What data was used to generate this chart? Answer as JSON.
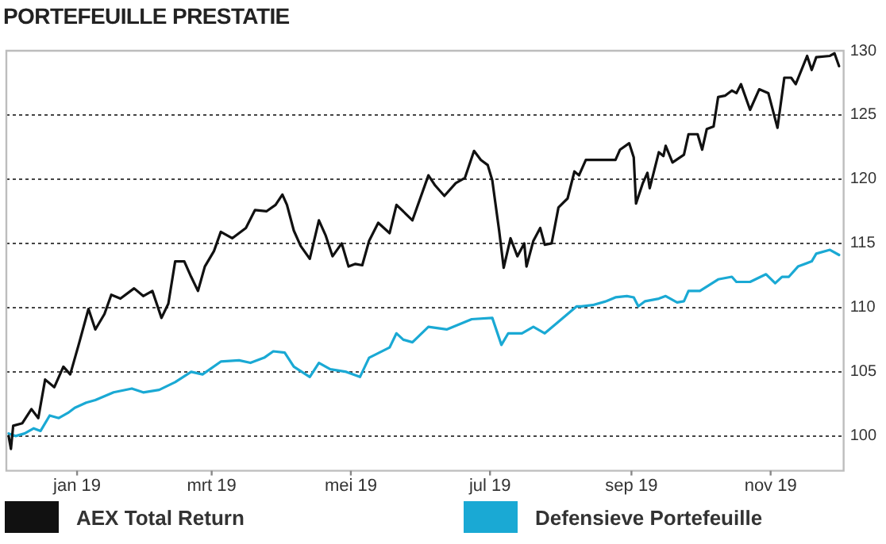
{
  "chart_data": {
    "type": "line",
    "title": "PORTEFEUILLE PRESTATIE",
    "xlim": [
      "2018-12-01",
      "2019-12-03"
    ],
    "xticks": [
      {
        "value": "2019-01-01",
        "label": "jan 19"
      },
      {
        "value": "2019-03-01",
        "label": "mrt 19"
      },
      {
        "value": "2019-05-01",
        "label": "mei 19"
      },
      {
        "value": "2019-07-01",
        "label": "jul 19"
      },
      {
        "value": "2019-09-01",
        "label": "sep 19"
      },
      {
        "value": "2019-11-01",
        "label": "nov 19"
      }
    ],
    "ylim": [
      97.3,
      130
    ],
    "yticks": [
      100,
      105,
      110,
      115,
      120,
      125,
      130
    ],
    "grid": "y",
    "legend": "bottom",
    "marker": "none",
    "line_style": "solid",
    "series": [
      {
        "name": "AEX Total Return",
        "color": "#111111",
        "x": [
          "2018-12-02",
          "2018-12-03",
          "2018-12-04",
          "2018-12-08",
          "2018-12-12",
          "2018-12-15",
          "2018-12-18",
          "2018-12-22",
          "2018-12-26",
          "2018-12-29",
          "2019-01-02",
          "2019-01-06",
          "2019-01-09",
          "2019-01-13",
          "2019-01-16",
          "2019-01-20",
          "2019-01-26",
          "2019-01-30",
          "2019-02-03",
          "2019-02-07",
          "2019-02-10",
          "2019-02-13",
          "2019-02-17",
          "2019-02-20",
          "2019-02-23",
          "2019-02-26",
          "2019-03-02",
          "2019-03-05",
          "2019-03-10",
          "2019-03-16",
          "2019-03-20",
          "2019-03-25",
          "2019-03-29",
          "2019-04-01",
          "2019-04-03",
          "2019-04-06",
          "2019-04-09",
          "2019-04-13",
          "2019-04-17",
          "2019-04-20",
          "2019-04-23",
          "2019-04-27",
          "2019-04-30",
          "2019-05-03",
          "2019-05-06",
          "2019-05-09",
          "2019-05-13",
          "2019-05-18",
          "2019-05-21",
          "2019-05-28",
          "2019-06-04",
          "2019-06-07",
          "2019-06-11",
          "2019-06-16",
          "2019-06-20",
          "2019-06-24",
          "2019-06-27",
          "2019-06-30",
          "2019-07-02",
          "2019-07-05",
          "2019-07-07",
          "2019-07-10",
          "2019-07-13",
          "2019-07-16",
          "2019-07-17",
          "2019-07-20",
          "2019-07-23",
          "2019-07-25",
          "2019-07-28",
          "2019-07-31",
          "2019-08-04",
          "2019-08-07",
          "2019-08-09",
          "2019-08-12",
          "2019-08-22",
          "2019-08-25",
          "2019-08-27",
          "2019-08-31",
          "2019-09-02",
          "2019-09-03",
          "2019-09-06",
          "2019-09-08",
          "2019-09-09",
          "2019-09-13",
          "2019-09-15",
          "2019-09-16",
          "2019-09-19",
          "2019-09-24",
          "2019-09-26",
          "2019-09-30",
          "2019-10-02",
          "2019-10-04",
          "2019-10-07",
          "2019-10-09",
          "2019-10-12",
          "2019-10-15",
          "2019-10-17",
          "2019-10-19",
          "2019-10-23",
          "2019-10-27",
          "2019-10-31",
          "2019-11-04",
          "2019-11-07",
          "2019-11-10",
          "2019-11-12",
          "2019-11-17",
          "2019-11-19",
          "2019-11-21",
          "2019-11-27",
          "2019-11-29",
          "2019-12-01"
        ],
        "values": [
          100,
          99.0,
          100.8,
          101.0,
          102.1,
          101.4,
          104.4,
          103.8,
          105.4,
          104.8,
          107.3,
          109.9,
          108.3,
          109.5,
          111.0,
          110.7,
          111.5,
          110.9,
          111.3,
          109.2,
          110.3,
          113.6,
          113.6,
          112.4,
          111.3,
          113.2,
          114.4,
          115.9,
          115.4,
          116.2,
          117.6,
          117.5,
          118.0,
          118.8,
          118.0,
          116.0,
          114.8,
          113.8,
          116.8,
          115.6,
          114.0,
          115.0,
          113.2,
          113.4,
          113.3,
          115.2,
          116.6,
          115.8,
          118.0,
          116.8,
          120.3,
          119.5,
          118.7,
          119.7,
          120.1,
          122.2,
          121.5,
          121.1,
          119.9,
          116.0,
          113.1,
          115.4,
          114.0,
          115.0,
          113.2,
          115.2,
          116.2,
          114.9,
          115.0,
          117.8,
          118.5,
          120.6,
          120.3,
          121.5,
          121.5,
          121.5,
          122.3,
          122.8,
          121.7,
          118.1,
          119.7,
          120.5,
          119.3,
          122.1,
          121.8,
          122.6,
          121.3,
          121.9,
          123.5,
          123.5,
          122.3,
          123.9,
          124.1,
          126.4,
          126.5,
          126.9,
          126.7,
          127.4,
          125.4,
          127.0,
          126.7,
          124.0,
          127.9,
          127.9,
          127.4,
          129.6,
          128.5,
          129.5,
          129.6,
          129.8,
          128.8
        ]
      },
      {
        "name": "Defensieve Portefeuille",
        "color": "#1aa9d4",
        "x": [
          "2018-12-02",
          "2018-12-05",
          "2018-12-09",
          "2018-12-13",
          "2018-12-16",
          "2018-12-20",
          "2018-12-24",
          "2018-12-28",
          "2018-12-31",
          "2019-01-05",
          "2019-01-09",
          "2019-01-17",
          "2019-01-25",
          "2019-01-30",
          "2019-02-06",
          "2019-02-13",
          "2019-02-20",
          "2019-02-25",
          "2019-03-05",
          "2019-03-13",
          "2019-03-18",
          "2019-03-24",
          "2019-03-28",
          "2019-04-02",
          "2019-04-06",
          "2019-04-13",
          "2019-04-17",
          "2019-04-22",
          "2019-04-29",
          "2019-05-05",
          "2019-05-09",
          "2019-05-18",
          "2019-05-21",
          "2019-05-24",
          "2019-05-28",
          "2019-06-04",
          "2019-06-12",
          "2019-06-23",
          "2019-07-02",
          "2019-07-06",
          "2019-07-09",
          "2019-07-15",
          "2019-07-20",
          "2019-07-25",
          "2019-07-31",
          "2019-08-08",
          "2019-08-10",
          "2019-08-15",
          "2019-08-21",
          "2019-08-25",
          "2019-08-30",
          "2019-09-02",
          "2019-09-04",
          "2019-09-07",
          "2019-09-13",
          "2019-09-16",
          "2019-09-21",
          "2019-09-24",
          "2019-09-26",
          "2019-10-01",
          "2019-10-09",
          "2019-10-15",
          "2019-10-17",
          "2019-10-23",
          "2019-10-30",
          "2019-11-03",
          "2019-11-06",
          "2019-11-09",
          "2019-11-13",
          "2019-11-19",
          "2019-11-21",
          "2019-11-27",
          "2019-12-01"
        ],
        "values": [
          100.2,
          100.0,
          100.2,
          100.6,
          100.4,
          101.6,
          101.4,
          101.8,
          102.2,
          102.6,
          102.8,
          103.4,
          103.7,
          103.4,
          103.6,
          104.2,
          105.0,
          104.8,
          105.8,
          105.9,
          105.7,
          106.1,
          106.6,
          106.5,
          105.4,
          104.6,
          105.7,
          105.2,
          105.0,
          104.6,
          106.1,
          106.9,
          108.0,
          107.5,
          107.3,
          108.5,
          108.3,
          109.1,
          109.2,
          107.1,
          108.0,
          108.0,
          108.5,
          108.0,
          108.9,
          110.1,
          110.1,
          110.2,
          110.5,
          110.8,
          110.9,
          110.8,
          110.1,
          110.5,
          110.7,
          110.9,
          110.4,
          110.5,
          111.3,
          111.3,
          112.2,
          112.4,
          112.0,
          112.0,
          112.6,
          111.9,
          112.4,
          112.4,
          113.2,
          113.6,
          114.2,
          114.5,
          114.1
        ]
      }
    ]
  }
}
